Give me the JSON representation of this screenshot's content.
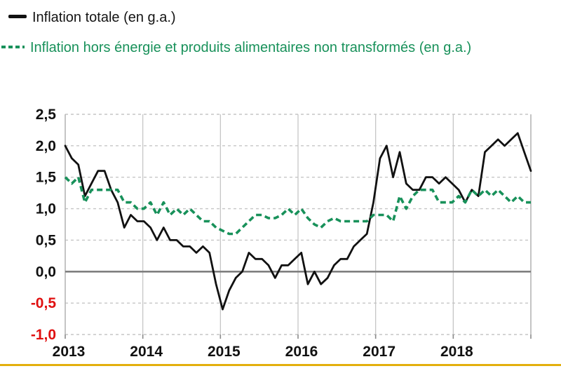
{
  "legend": [
    {
      "label": "Inflation totale (en g.a.)",
      "color": "#111111",
      "style": "solid"
    },
    {
      "label": "Inflation hors énergie et produits alimentaires non transformés (en g.a.)",
      "color": "#18915a",
      "style": "dashed"
    }
  ],
  "colors": {
    "background": "#ffffff",
    "label": "#111111",
    "negative_label": "#e01010",
    "gridline": "#c6c6c6",
    "year_line": "#c2c2c2",
    "plot_border": "#b5b5b5",
    "zero_line": "#7f7f7f",
    "tick": "#8a8a8a",
    "series_total": "#111111",
    "series_core": "#18915a",
    "footer_rule": "#e3af0d"
  },
  "chart_data": {
    "type": "line",
    "title": "",
    "xlabel": "",
    "ylabel": "",
    "freq": "monthly",
    "start": "2013-01",
    "end": "2018-12",
    "ylim": [
      -1.0,
      2.5
    ],
    "ytick_values": [
      2.5,
      2.0,
      1.5,
      1.0,
      0.5,
      0.0,
      -0.5,
      -1.0
    ],
    "ytick_labels": [
      "2,5",
      "2,0",
      "1,5",
      "1,0",
      "0,5",
      "0,0",
      "-0,5",
      "-1,0"
    ],
    "x_tick_labels": [
      "2013",
      "2014",
      "2015",
      "2016",
      "2017",
      "2018"
    ],
    "grid": "horizontal dashed each 0.5, vertical solid each year, bold solid zero line",
    "legend_position": "top-left above plot",
    "series": [
      {
        "name": "Inflation totale (en g.a.)",
        "color": "#111111",
        "dashed": false,
        "data_name": "total-inflation-line",
        "values": [
          2.0,
          1.8,
          1.7,
          1.2,
          1.4,
          1.6,
          1.6,
          1.3,
          1.1,
          0.7,
          0.9,
          0.8,
          0.8,
          0.7,
          0.5,
          0.7,
          0.5,
          0.5,
          0.4,
          0.4,
          0.3,
          0.4,
          0.3,
          -0.2,
          -0.6,
          -0.3,
          -0.1,
          0.0,
          0.3,
          0.2,
          0.2,
          0.1,
          -0.1,
          0.1,
          0.1,
          0.2,
          0.3,
          -0.2,
          0.0,
          -0.2,
          -0.1,
          0.1,
          0.2,
          0.2,
          0.4,
          0.5,
          0.6,
          1.1,
          1.8,
          2.0,
          1.5,
          1.9,
          1.4,
          1.3,
          1.3,
          1.5,
          1.5,
          1.4,
          1.5,
          1.4,
          1.3,
          1.1,
          1.3,
          1.2,
          1.9,
          2.0,
          2.1,
          2.0,
          2.1,
          2.2,
          1.9,
          1.6
        ]
      },
      {
        "name": "Inflation hors énergie et produits alimentaires non transformés (en g.a.)",
        "color": "#18915a",
        "dashed": true,
        "data_name": "core-inflation-line",
        "values": [
          1.5,
          1.4,
          1.5,
          1.1,
          1.3,
          1.3,
          1.3,
          1.3,
          1.3,
          1.1,
          1.1,
          1.0,
          1.0,
          1.1,
          0.9,
          1.1,
          0.9,
          1.0,
          0.9,
          1.0,
          0.9,
          0.8,
          0.8,
          0.7,
          0.65,
          0.6,
          0.6,
          0.7,
          0.8,
          0.9,
          0.9,
          0.85,
          0.85,
          0.9,
          1.0,
          0.9,
          1.0,
          0.85,
          0.75,
          0.7,
          0.8,
          0.85,
          0.8,
          0.8,
          0.8,
          0.8,
          0.8,
          0.9,
          0.9,
          0.9,
          0.8,
          1.2,
          1.0,
          1.2,
          1.3,
          1.3,
          1.3,
          1.1,
          1.1,
          1.1,
          1.2,
          1.1,
          1.3,
          1.2,
          1.3,
          1.2,
          1.3,
          1.2,
          1.1,
          1.2,
          1.1,
          1.1
        ]
      }
    ]
  }
}
